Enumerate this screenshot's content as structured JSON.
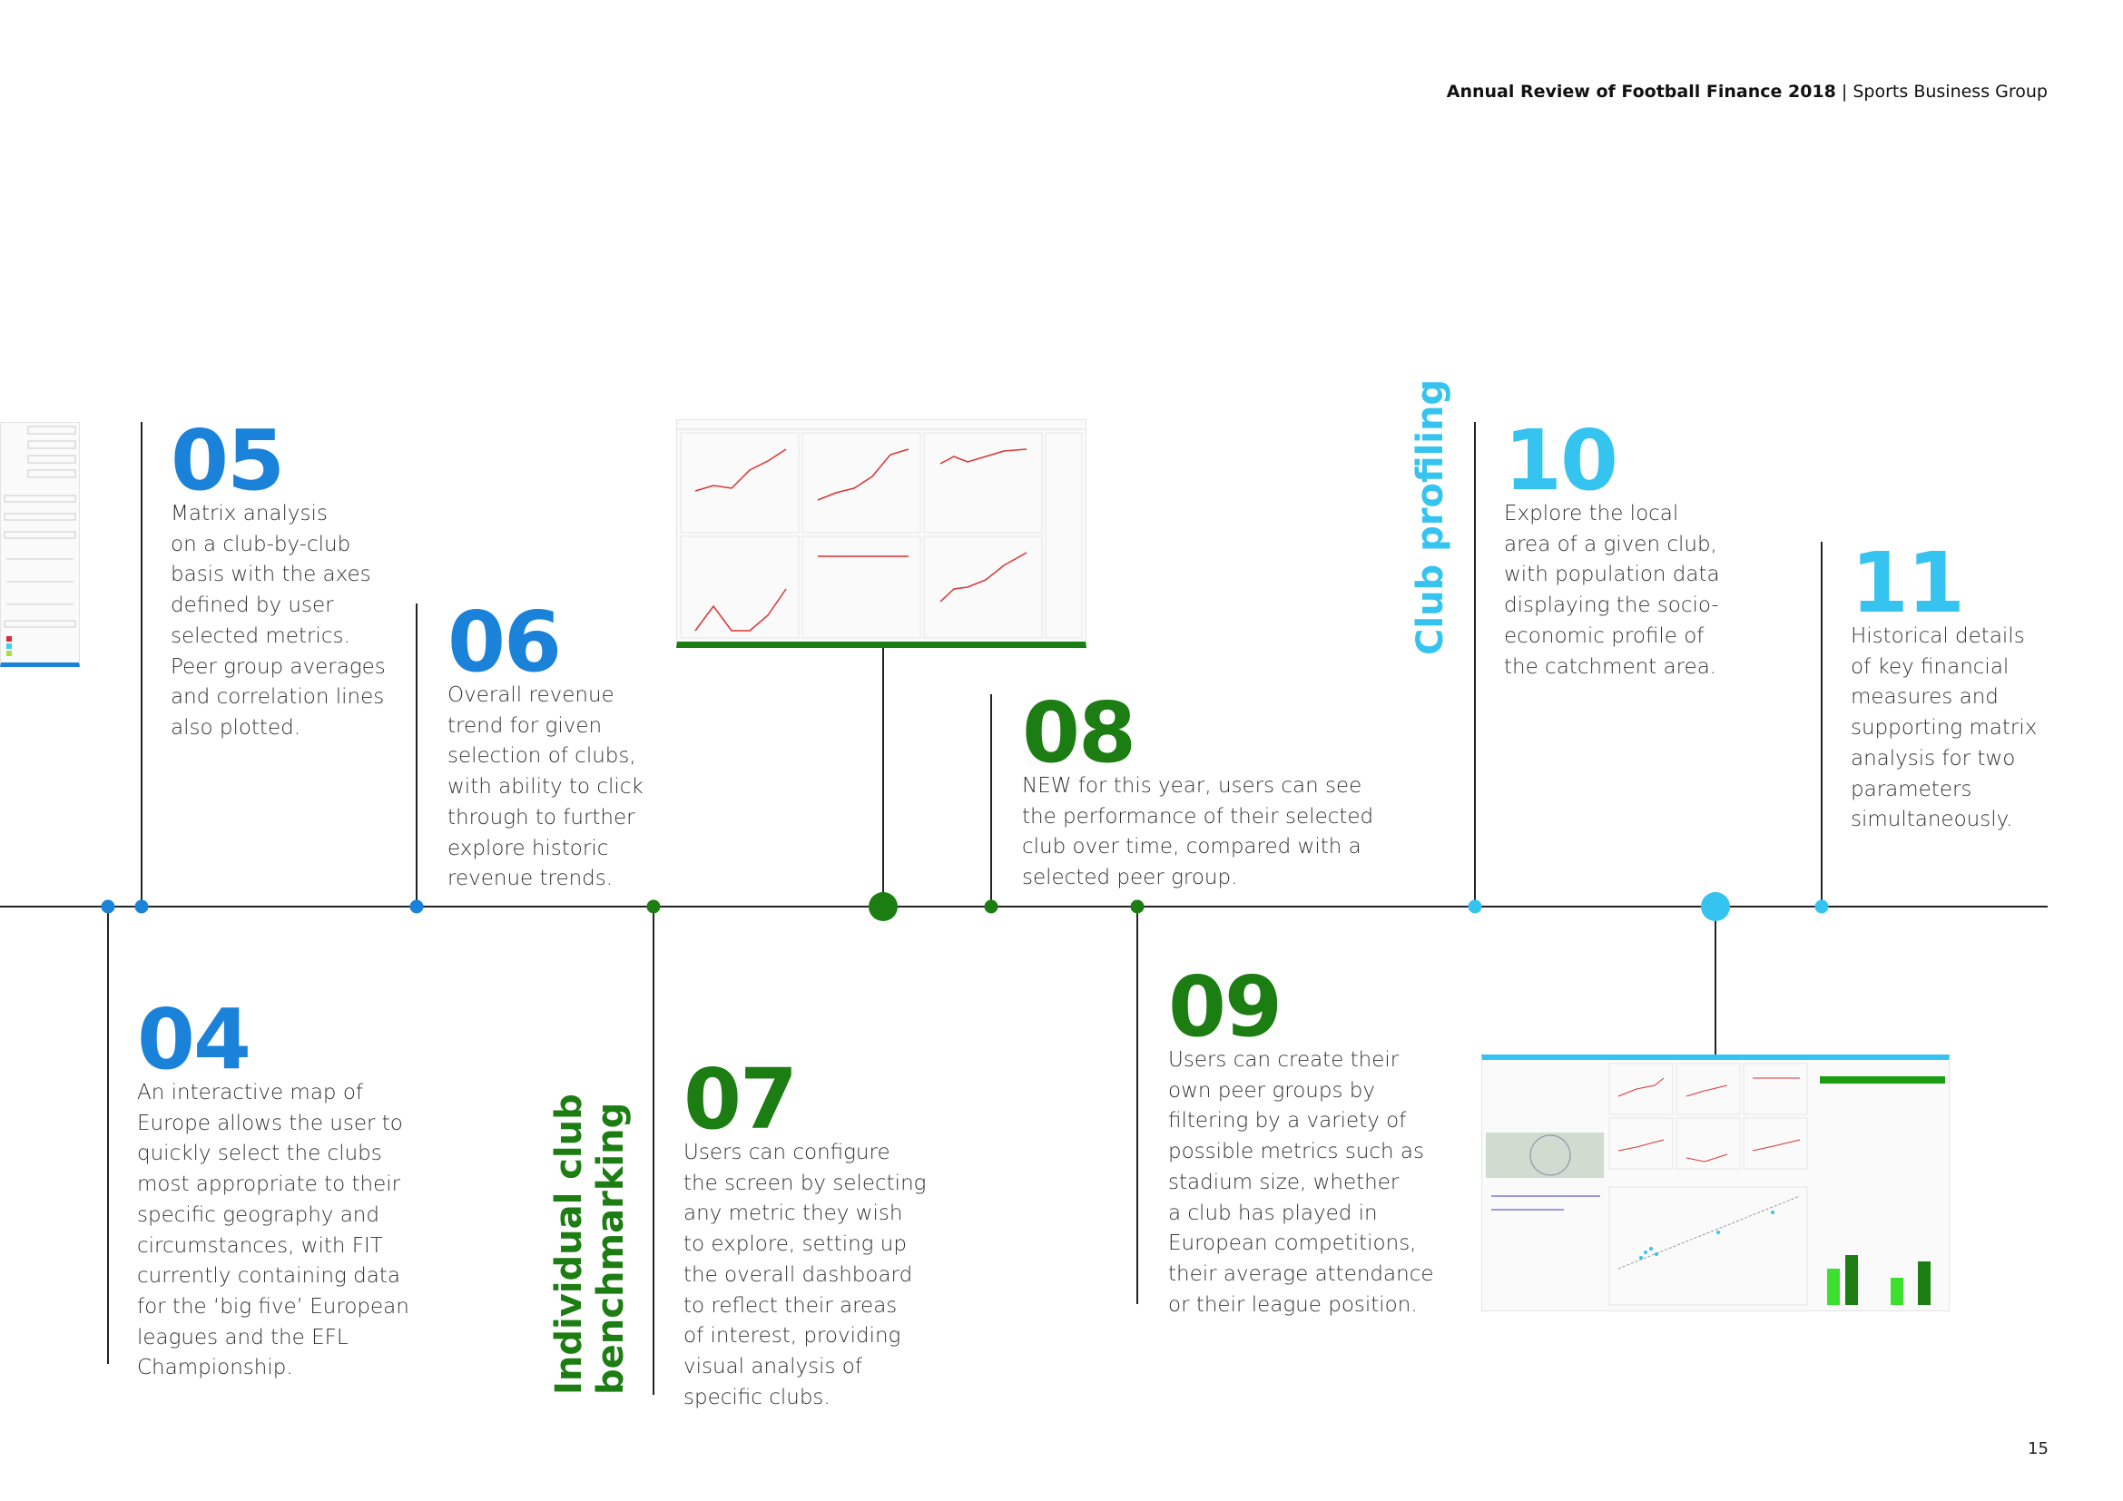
{
  "header": {
    "title": "Annual Review of Football Finance 2018",
    "separator": "|",
    "subtitle": "Sports Business Group"
  },
  "colors": {
    "blue": "#1a82d8",
    "green": "#1c7d12",
    "cyan": "#35c3f0",
    "line": "#222222"
  },
  "sections": {
    "club_benchmarking": {
      "line1": "Individual club",
      "line2": "benchmarking"
    },
    "club_profiling": "Club profiling"
  },
  "steps": {
    "s04": {
      "number": "04",
      "text": "An interactive map of\nEurope allows the user to\nquickly select the clubs\nmost appropriate to their\nspecific geography and\ncircumstances, with FIT\ncurrently containing data\nfor the ‘big five’ European\nleagues and the EFL\nChampionship."
    },
    "s05": {
      "number": "05",
      "text": "Matrix analysis\non a club-by-club\nbasis with the axes\ndefined by user\nselected metrics.\nPeer group averages\nand correlation lines\nalso plotted."
    },
    "s06": {
      "number": "06",
      "text": "Overall revenue\ntrend for given\nselection of clubs,\nwith ability to click\nthrough to further\nexplore historic\nrevenue trends."
    },
    "s07": {
      "number": "07",
      "text": "Users can configure\nthe screen by selecting\nany metric they wish\nto explore, setting up\nthe overall dashboard\nto reflect their areas\nof interest, providing\nvisual analysis of\nspecific clubs."
    },
    "s08": {
      "number": "08",
      "text": "NEW for this year, users can see\nthe performance of their selected\nclub over time, compared with a\nselected peer group."
    },
    "s09": {
      "number": "09",
      "text": "Users can create their\nown peer groups by\nfiltering by a variety of\npossible metrics such as\nstadium size, whether\na club has played in\nEuropean competitions,\ntheir average attendance\nor their league position."
    },
    "s10": {
      "number": "10",
      "text": "Explore the local\narea of a given club,\nwith population data\ndisplaying the socio-\neconomic profile of\nthe catchment area."
    },
    "s11": {
      "number": "11",
      "text": "Historical details\nof key financial\nmeasures and\nsupporting matrix\nanalysis for two\nparameters\nsimultaneously."
    }
  },
  "page_number": "15"
}
